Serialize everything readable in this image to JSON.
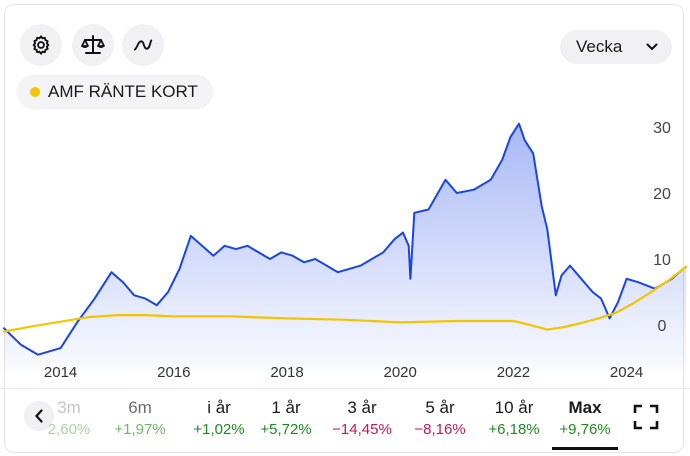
{
  "toolbar": {
    "icons": [
      "settings-gear-icon",
      "scale-compare-icon",
      "line-chart-icon"
    ],
    "period_select": "Vecka"
  },
  "legend": {
    "label": "AMF RÄNTE KORT",
    "color": "#f5c400"
  },
  "colors": {
    "primary_line": "#1a45e6",
    "comparison_line": "#f5c400",
    "positive": "#1e8a1e",
    "negative": "#c2185b"
  },
  "chart_data": {
    "type": "line",
    "y_ticks": [
      "30",
      "20",
      "10",
      "0"
    ],
    "x_ticks": [
      "2014",
      "2016",
      "2018",
      "2020",
      "2022",
      "2024"
    ],
    "ylim": [
      -5,
      32
    ],
    "series": [
      {
        "name": "",
        "x": [
          2013.0,
          2013.3,
          2013.6,
          2014.0,
          2014.3,
          2014.6,
          2014.9,
          2015.1,
          2015.3,
          2015.5,
          2015.7,
          2015.9,
          2016.1,
          2016.3,
          2016.5,
          2016.7,
          2016.9,
          2017.1,
          2017.3,
          2017.5,
          2017.7,
          2017.9,
          2018.1,
          2018.3,
          2018.5,
          2018.7,
          2018.9,
          2019.1,
          2019.3,
          2019.5,
          2019.7,
          2019.9,
          2020.05,
          2020.15,
          2020.18,
          2020.25,
          2020.5,
          2020.8,
          2021.0,
          2021.3,
          2021.6,
          2021.8,
          2021.95,
          2022.1,
          2022.2,
          2022.35,
          2022.5,
          2022.6,
          2022.75,
          2022.85,
          2023.0,
          2023.2,
          2023.4,
          2023.55,
          2023.7,
          2023.85,
          2024.0,
          2024.2,
          2024.5,
          2024.8,
          2025.0,
          2025.05
        ],
        "values": [
          -0.5,
          -3.0,
          -4.5,
          -3.5,
          0.5,
          4.0,
          8.0,
          6.5,
          4.5,
          4.0,
          3.0,
          5.0,
          8.5,
          13.5,
          12.0,
          10.5,
          12.0,
          11.5,
          12.0,
          11.0,
          10.0,
          11.0,
          10.5,
          9.5,
          10.0,
          9.0,
          8.0,
          8.5,
          9.0,
          10.0,
          11.0,
          13.0,
          14.0,
          12.0,
          7.0,
          17.0,
          17.5,
          22.0,
          20.0,
          20.5,
          22.0,
          25.0,
          28.5,
          30.5,
          28.0,
          26.0,
          18.0,
          14.5,
          4.5,
          7.5,
          9.0,
          7.0,
          5.0,
          4.0,
          1.0,
          3.5,
          7.0,
          6.5,
          5.5,
          7.0,
          8.5,
          8.8
        ]
      },
      {
        "name": "AMF RÄNTE KORT",
        "x": [
          2013.0,
          2013.5,
          2014.0,
          2014.5,
          2015.0,
          2015.5,
          2016.0,
          2017.0,
          2018.0,
          2019.0,
          2020.0,
          2021.0,
          2022.0,
          2022.3,
          2022.6,
          2022.9,
          2023.2,
          2023.5,
          2023.8,
          2024.1,
          2024.4,
          2024.7,
          2025.05
        ],
        "values": [
          -1.0,
          -0.2,
          0.5,
          1.2,
          1.5,
          1.5,
          1.3,
          1.3,
          1.0,
          0.8,
          0.4,
          0.6,
          0.6,
          0.0,
          -0.7,
          -0.3,
          0.3,
          1.0,
          1.8,
          3.2,
          4.8,
          6.5,
          8.8
        ]
      }
    ]
  },
  "periods": [
    {
      "label": "3m",
      "change": "2,60%",
      "style": "faded"
    },
    {
      "label": "6m",
      "change": "+1,97%",
      "style": "dim"
    },
    {
      "label": "i år",
      "change": "+1,02%",
      "style": "pos"
    },
    {
      "label": "1 år",
      "change": "+5,72%",
      "style": "pos"
    },
    {
      "label": "3 år",
      "change": "−14,45%",
      "style": "neg"
    },
    {
      "label": "5 år",
      "change": "−8,16%",
      "style": "neg"
    },
    {
      "label": "10 år",
      "change": "+6,18%",
      "style": "pos"
    },
    {
      "label": "Max",
      "change": "+9,76%",
      "style": "pos active"
    }
  ]
}
